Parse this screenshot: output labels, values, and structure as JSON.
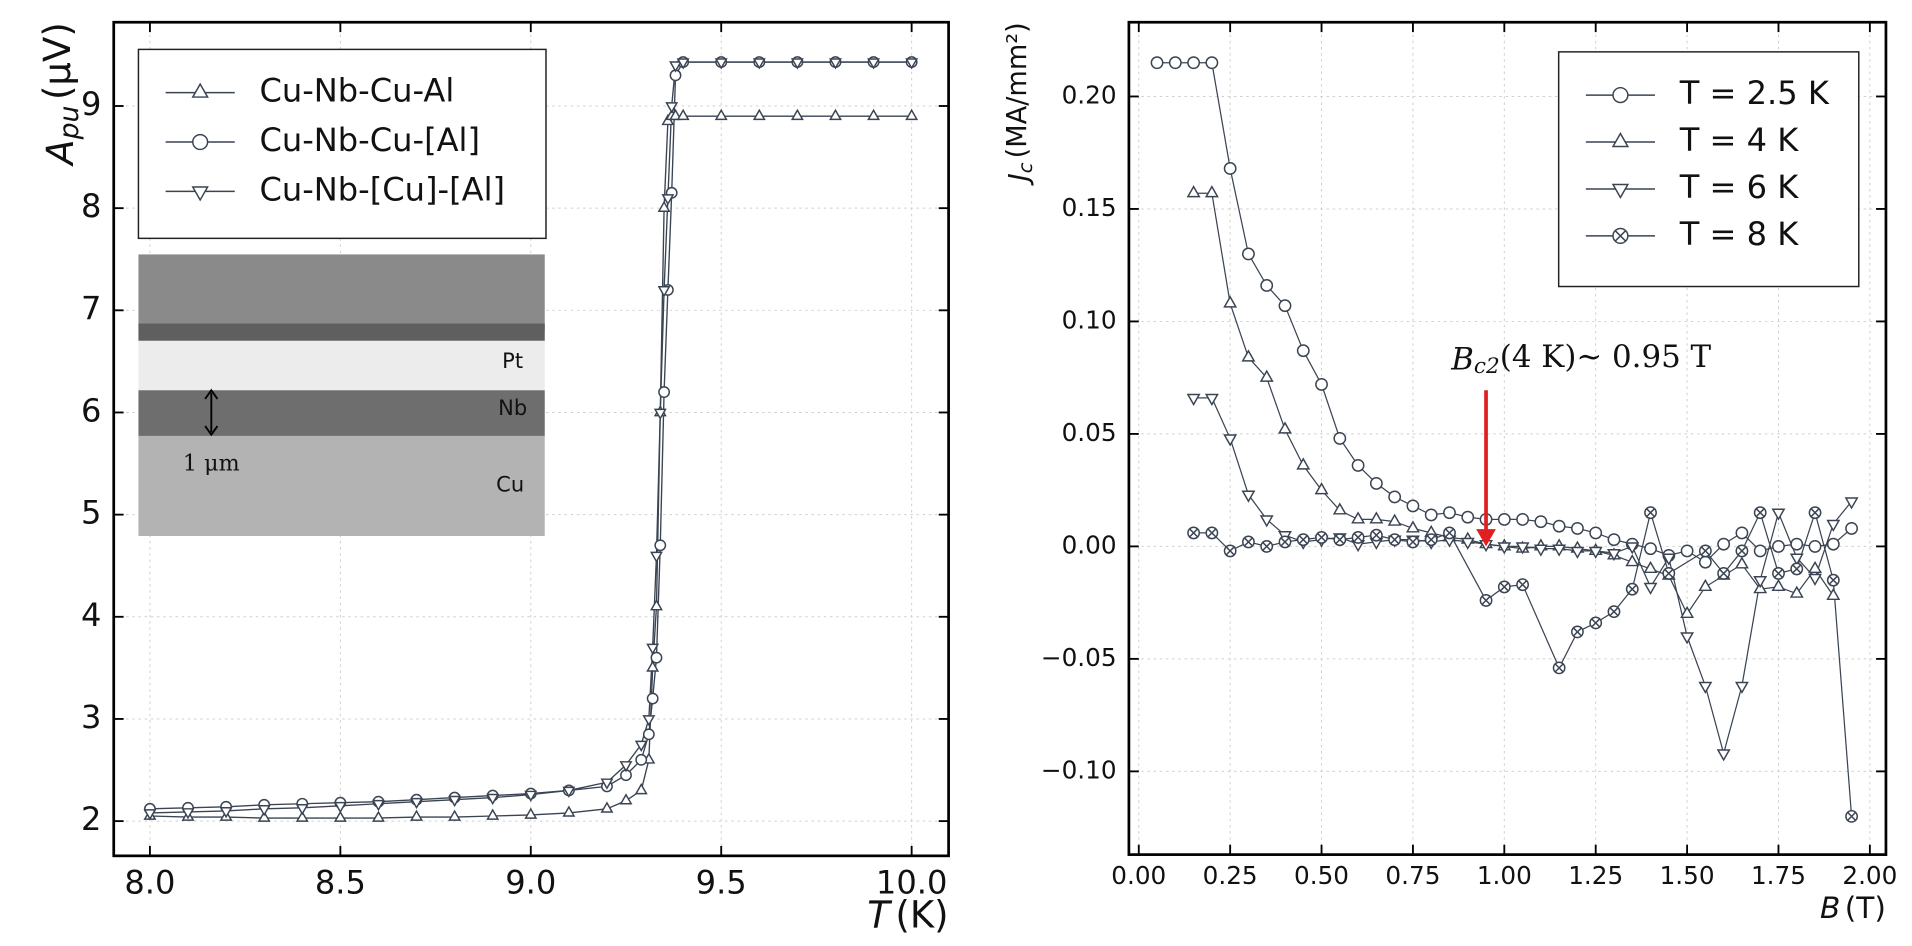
{
  "chart_data": [
    {
      "type": "line",
      "xlabel": {
        "symbol": "T",
        "unit": "(K)"
      },
      "ylabel": {
        "symbol": "A",
        "subscript": "pu",
        "unit": "(μV)"
      },
      "xlim": [
        7.905,
        10.097
      ],
      "ylim": [
        1.66,
        9.82
      ],
      "xticks": [
        {
          "value": 8.0,
          "label": "8.0"
        },
        {
          "value": 8.5,
          "label": "8.5"
        },
        {
          "value": 9.0,
          "label": "9.0"
        },
        {
          "value": 9.5,
          "label": "9.5"
        },
        {
          "value": 10.0,
          "label": "10.0"
        }
      ],
      "yticks": [
        2,
        3,
        4,
        5,
        6,
        7,
        8,
        9
      ],
      "grid": true,
      "legend": "upper-left",
      "x": [
        8.0,
        8.1,
        8.2,
        8.3,
        8.4,
        8.5,
        8.6,
        8.7,
        8.8,
        8.9,
        9.0,
        9.1,
        9.2,
        9.25,
        9.29,
        9.31,
        9.32,
        9.33,
        9.34,
        9.35,
        9.36,
        9.37,
        9.38,
        9.4,
        9.5,
        9.6,
        9.7,
        9.8,
        9.9,
        10.0
      ],
      "series": [
        {
          "name": "Cu-Nb-Cu-Al",
          "marker": "triangle-up",
          "color": "#3a4452",
          "values": [
            2.05,
            2.04,
            2.04,
            2.03,
            2.03,
            2.03,
            2.03,
            2.04,
            2.04,
            2.05,
            2.06,
            2.08,
            2.12,
            2.2,
            2.3,
            2.6,
            3.5,
            4.1,
            6.0,
            8.0,
            8.85,
            8.9,
            8.9,
            8.9,
            8.9,
            8.9,
            8.9,
            8.9,
            8.9,
            8.9
          ]
        },
        {
          "name": "Cu-Nb-Cu-[Al]",
          "marker": "circle",
          "color": "#3a4452",
          "values": [
            2.12,
            2.13,
            2.14,
            2.16,
            2.17,
            2.18,
            2.19,
            2.21,
            2.23,
            2.25,
            2.27,
            2.3,
            2.34,
            2.45,
            2.6,
            2.85,
            3.2,
            3.6,
            4.7,
            6.2,
            7.2,
            8.15,
            9.3,
            9.43,
            9.43,
            9.43,
            9.43,
            9.43,
            9.43,
            9.43
          ]
        },
        {
          "name": "Cu-Nb-[Cu]-[Al]",
          "marker": "triangle-down",
          "color": "#3a4452",
          "values": [
            2.08,
            2.09,
            2.1,
            2.12,
            2.13,
            2.15,
            2.17,
            2.19,
            2.21,
            2.23,
            2.26,
            2.3,
            2.38,
            2.55,
            2.75,
            3.0,
            3.7,
            4.6,
            6.0,
            7.2,
            8.1,
            9.0,
            9.4,
            9.43,
            9.43,
            9.43,
            9.43,
            9.43,
            9.43,
            9.43
          ]
        }
      ],
      "inset_labels": [
        "Pt",
        "Nb",
        "Cu",
        "1 μm"
      ]
    },
    {
      "type": "line",
      "xlabel": {
        "symbol": "B",
        "unit": "(T)"
      },
      "ylabel": {
        "symbol": "J",
        "subscript": "c",
        "unit": "(MA/mm²)"
      },
      "xlim": [
        -0.027,
        2.044
      ],
      "ylim": [
        -0.137,
        0.233
      ],
      "xticks": [
        {
          "value": 0,
          "label": "0.00"
        },
        {
          "value": 0.25,
          "label": "0.25"
        },
        {
          "value": 0.5,
          "label": "0.50"
        },
        {
          "value": 0.75,
          "label": "0.75"
        },
        {
          "value": 1.0,
          "label": "1.00"
        },
        {
          "value": 1.25,
          "label": "1.25"
        },
        {
          "value": 1.5,
          "label": "1.50"
        },
        {
          "value": 1.75,
          "label": "1.75"
        },
        {
          "value": 2.0,
          "label": "2.00"
        }
      ],
      "yticks": [
        {
          "value": -0.1,
          "label": "−0.10"
        },
        {
          "value": -0.05,
          "label": "−0.05"
        },
        {
          "value": 0,
          "label": "0.00"
        },
        {
          "value": 0.05,
          "label": "0.05"
        },
        {
          "value": 0.1,
          "label": "0.10"
        },
        {
          "value": 0.15,
          "label": "0.15"
        },
        {
          "value": 0.2,
          "label": "0.20"
        }
      ],
      "grid": true,
      "legend": "upper-right",
      "series": [
        {
          "name": "T = 2.5 K",
          "marker": "circle",
          "color": "#3a4452",
          "x": [
            0.05,
            0.1,
            0.15,
            0.2,
            0.25,
            0.3,
            0.35,
            0.4,
            0.45,
            0.5,
            0.55,
            0.6,
            0.65,
            0.7,
            0.75,
            0.8,
            0.85,
            0.9,
            0.95,
            1.0,
            1.05,
            1.1,
            1.15,
            1.2,
            1.25,
            1.3,
            1.35,
            1.4,
            1.45,
            1.5,
            1.55,
            1.6,
            1.65,
            1.7,
            1.75,
            1.8,
            1.85,
            1.9,
            1.95
          ],
          "values": [
            0.215,
            0.215,
            0.215,
            0.215,
            0.168,
            0.13,
            0.116,
            0.107,
            0.087,
            0.072,
            0.048,
            0.036,
            0.028,
            0.022,
            0.018,
            0.014,
            0.015,
            0.013,
            0.012,
            0.012,
            0.012,
            0.011,
            0.009,
            0.008,
            0.006,
            0.003,
            0.001,
            -0.001,
            -0.004,
            -0.002,
            -0.007,
            0.001,
            0.006,
            -0.002,
            0.0,
            0.001,
            0.0,
            0.001,
            0.008
          ]
        },
        {
          "name": "T = 4 K",
          "marker": "triangle-up",
          "color": "#3a4452",
          "x": [
            0.15,
            0.2,
            0.25,
            0.3,
            0.35,
            0.4,
            0.45,
            0.5,
            0.55,
            0.6,
            0.65,
            0.7,
            0.75,
            0.8,
            0.85,
            0.9,
            0.95,
            1.0,
            1.05,
            1.1,
            1.15,
            1.2,
            1.25,
            1.3,
            1.35,
            1.4,
            1.45,
            1.5,
            1.55,
            1.6,
            1.65,
            1.7,
            1.75,
            1.8,
            1.85,
            1.9
          ],
          "values": [
            0.157,
            0.157,
            0.108,
            0.084,
            0.075,
            0.052,
            0.036,
            0.025,
            0.016,
            0.012,
            0.012,
            0.011,
            0.008,
            0.006,
            0.004,
            0.003,
            0.001,
            0.0,
            -0.001,
            0.0,
            0.0,
            -0.001,
            -0.002,
            -0.004,
            -0.007,
            -0.01,
            -0.013,
            -0.03,
            -0.018,
            -0.013,
            -0.008,
            -0.019,
            -0.018,
            -0.021,
            -0.01,
            -0.022
          ]
        },
        {
          "name": "T = 6 K",
          "marker": "triangle-down",
          "color": "#3a4452",
          "x": [
            0.15,
            0.2,
            0.25,
            0.3,
            0.35,
            0.4,
            0.45,
            0.5,
            0.55,
            0.6,
            0.65,
            0.7,
            0.75,
            0.8,
            0.85,
            0.9,
            0.95,
            1.0,
            1.05,
            1.1,
            1.15,
            1.2,
            1.25,
            1.3,
            1.35,
            1.4,
            1.45,
            1.5,
            1.55,
            1.6,
            1.65,
            1.7,
            1.75,
            1.8,
            1.85,
            1.9,
            1.95
          ],
          "values": [
            0.066,
            0.066,
            0.048,
            0.023,
            0.012,
            0.005,
            0.002,
            0.003,
            0.004,
            0.001,
            0.002,
            0.003,
            0.003,
            0.002,
            0.003,
            0.002,
            0.001,
            0.0,
            0.0,
            -0.001,
            -0.001,
            -0.002,
            -0.002,
            -0.003,
            0.0,
            -0.018,
            -0.005,
            -0.04,
            -0.062,
            -0.092,
            -0.062,
            -0.015,
            0.015,
            -0.005,
            -0.014,
            0.01,
            0.02
          ]
        },
        {
          "name": "T = 8 K",
          "marker": "x-circle",
          "color": "#3a4452",
          "x": [
            0.15,
            0.2,
            0.25,
            0.3,
            0.35,
            0.4,
            0.45,
            0.5,
            0.55,
            0.6,
            0.65,
            0.7,
            0.75,
            0.8,
            0.85,
            0.95,
            1.0,
            1.05,
            1.15,
            1.2,
            1.25,
            1.3,
            1.35,
            1.4,
            1.45,
            1.55,
            1.6,
            1.65,
            1.7,
            1.75,
            1.8,
            1.85,
            1.9,
            1.95
          ],
          "values": [
            0.006,
            0.006,
            -0.002,
            0.002,
            0.0,
            0.002,
            0.003,
            0.004,
            0.003,
            0.004,
            0.005,
            0.003,
            0.002,
            0.003,
            0.006,
            -0.024,
            -0.018,
            -0.017,
            -0.054,
            -0.038,
            -0.034,
            -0.029,
            -0.019,
            0.015,
            -0.012,
            -0.002,
            -0.012,
            -0.002,
            0.015,
            -0.012,
            -0.01,
            0.015,
            -0.015,
            -0.12
          ]
        }
      ],
      "annotation": {
        "symbol": "B",
        "subscript": "c2",
        "text": "(4 K)~ 0.95 T",
        "arrow_to": [
          0.95,
          0.0
        ],
        "color": "#e02020"
      }
    }
  ]
}
